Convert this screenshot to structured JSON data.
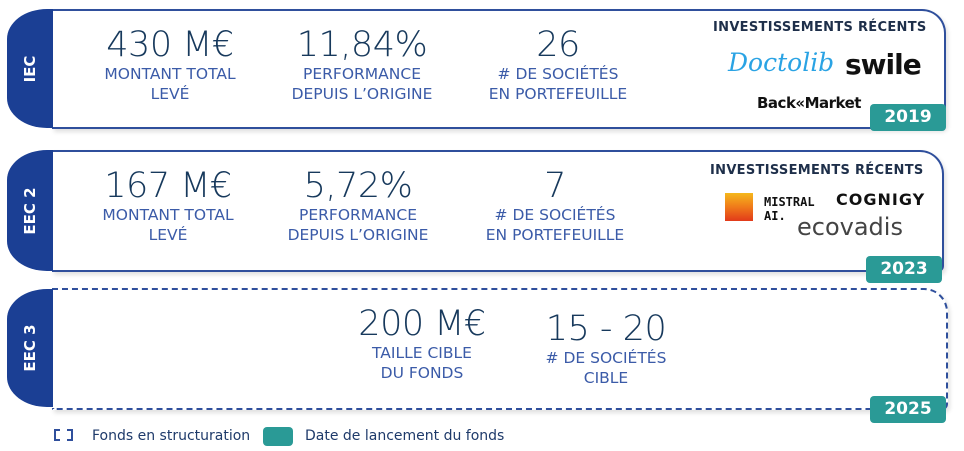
{
  "funds": [
    {
      "name": "IEC",
      "year": "2019",
      "stats": [
        {
          "value": "430 M€",
          "l1": "MONTANT TOTAL",
          "l2": "LEVÉ"
        },
        {
          "value": "11,84%",
          "l1": "PERFORMANCE",
          "l2": "DEPUIS L’ORIGINE"
        },
        {
          "value": "26",
          "l1": "# DE SOCIÉTÉS",
          "l2": "EN PORTEFEUILLE"
        }
      ],
      "investments_title": "INVESTISSEMENTS RÉCENTS",
      "logos": [
        "Doctolib",
        "swile",
        "Back«Market"
      ]
    },
    {
      "name": "EEC 2",
      "year": "2023",
      "stats": [
        {
          "value": "167 M€",
          "l1": "MONTANT TOTAL",
          "l2": "LEVÉ"
        },
        {
          "value": "5,72%",
          "l1": "PERFORMANCE",
          "l2": "DEPUIS L’ORIGINE"
        },
        {
          "value": "7",
          "l1": "# DE SOCIÉTÉS",
          "l2": "EN PORTEFEUILLE"
        }
      ],
      "investments_title": "INVESTISSEMENTS RÉCENTS",
      "logos": [
        "MISTRAL",
        "AI.",
        "COGNIGY",
        "ecovadis"
      ]
    },
    {
      "name": "EEC 3",
      "year": "2025",
      "stats": [
        {
          "value": "200 M€",
          "l1": "TAILLE CIBLE",
          "l2": "DU FONDS"
        },
        {
          "value": "15 - 20",
          "l1": "# DE SOCIÉTÉS",
          "l2": "CIBLE"
        }
      ]
    }
  ],
  "legend": {
    "structuring": "Fonds en structuration",
    "launch": "Date de lancement du fonds"
  },
  "colors": {
    "navy": "#1b3f94",
    "teal": "#2a9a96"
  }
}
